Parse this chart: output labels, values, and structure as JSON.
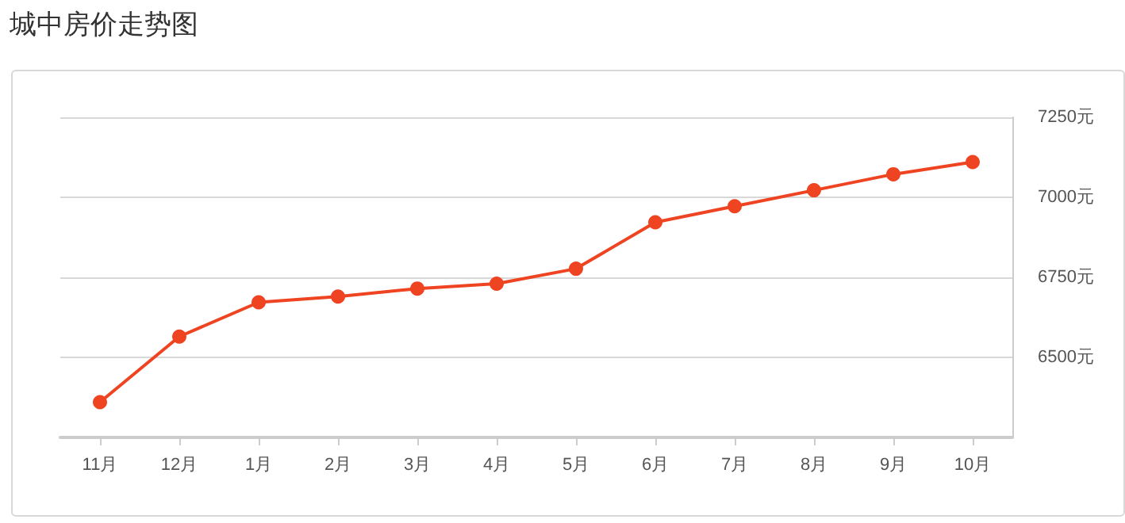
{
  "chart_data": {
    "type": "line",
    "title": "城中房价走势图",
    "categories": [
      "11月",
      "12月",
      "1月",
      "2月",
      "3月",
      "4月",
      "5月",
      "6月",
      "7月",
      "8月",
      "9月",
      "10月"
    ],
    "series": [
      {
        "color": "#ee4421",
        "values": [
          6360,
          6565,
          6672,
          6690,
          6715,
          6730,
          6777,
          6922,
          6972,
          7022,
          7072,
          7110
        ]
      }
    ],
    "ylim": [
      6250,
      7250
    ],
    "yticks": [
      {
        "value": 6500,
        "label": "6500元"
      },
      {
        "value": 6750,
        "label": "6750元"
      },
      {
        "value": 7000,
        "label": "7000元"
      },
      {
        "value": 7250,
        "label": "7250元"
      }
    ],
    "grid": "y",
    "marker": "circle",
    "line_style": "solid"
  }
}
